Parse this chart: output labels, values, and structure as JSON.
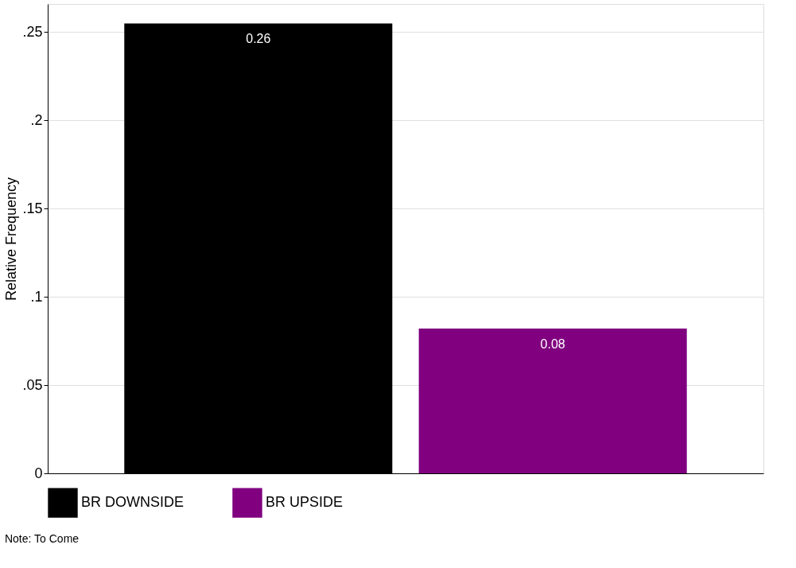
{
  "chart_data": {
    "type": "bar",
    "ylabel": "Relative Frequency",
    "categories": [
      null,
      null
    ],
    "series": [
      {
        "name": "BR DOWNSIDE",
        "color": "#000000",
        "values": [
          0.255,
          null
        ],
        "value_labels": [
          "0.26",
          null
        ]
      },
      {
        "name": "BR UPSIDE",
        "color": "#800080",
        "values": [
          null,
          0.082
        ],
        "value_labels": [
          null,
          "0.08"
        ]
      }
    ],
    "ylim": [
      0,
      0.266
    ],
    "yticks": [
      {
        "value": 0,
        "label": "0"
      },
      {
        "value": 0.05,
        "label": ".05"
      },
      {
        "value": 0.1,
        "label": ".1"
      },
      {
        "value": 0.15,
        "label": ".15"
      },
      {
        "value": 0.2,
        "label": ".2"
      },
      {
        "value": 0.25,
        "label": ".25"
      }
    ],
    "grid": "y",
    "legend": "bottom",
    "annotations": [
      "Note: To Come"
    ]
  }
}
